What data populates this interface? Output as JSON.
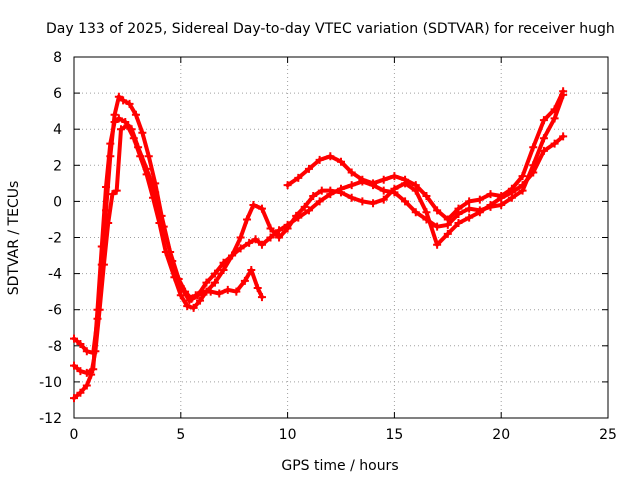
{
  "chart_data": {
    "type": "scatter",
    "title": "Day 133 of 2025, Sidereal Day-to-day VTEC variation (SDTVAR) for receiver hugh",
    "xlabel": "GPS time / hours",
    "ylabel": "SDTVAR / TECUs",
    "xlim": [
      0,
      25
    ],
    "ylim": [
      -12,
      8
    ],
    "x_ticks": [
      0,
      5,
      10,
      15,
      20,
      25
    ],
    "y_ticks": [
      -12,
      -10,
      -8,
      -6,
      -4,
      -2,
      0,
      2,
      4,
      6,
      8
    ],
    "grid": true,
    "marker": "+",
    "color": "#ff0000",
    "series": [
      {
        "name": "trace-1",
        "x": [
          0.0,
          0.3,
          0.6,
          0.9,
          1.1,
          1.3,
          1.5,
          1.7,
          1.9,
          2.1,
          2.3,
          2.6,
          2.9,
          3.2,
          3.5,
          3.8,
          4.1,
          4.5,
          4.9,
          5.2,
          5.5,
          5.7,
          6.0,
          6.4,
          6.8,
          7.2,
          7.6,
          8.0,
          8.3,
          8.6,
          8.8
        ],
        "y": [
          -7.6,
          -7.9,
          -8.3,
          -8.4,
          -6.5,
          -3.5,
          -0.5,
          2.5,
          4.8,
          5.8,
          5.6,
          5.4,
          4.8,
          3.8,
          2.5,
          1.0,
          -0.8,
          -2.8,
          -4.3,
          -5.0,
          -5.4,
          -5.2,
          -5.0,
          -5.0,
          -5.1,
          -4.9,
          -5.0,
          -4.4,
          -3.8,
          -4.8,
          -5.3
        ]
      },
      {
        "name": "trace-2",
        "x": [
          0.0,
          0.3,
          0.6,
          0.9,
          1.1,
          1.3,
          1.5,
          1.7,
          1.9,
          2.1,
          2.4,
          2.7,
          3.0,
          3.4,
          3.8,
          4.2,
          4.6,
          5.0,
          5.4,
          5.8,
          6.2,
          6.6,
          7.0,
          7.4,
          7.8,
          8.2,
          8.5,
          8.8,
          9.2,
          9.6,
          10.0,
          10.5,
          11.0,
          11.5,
          12.0,
          12.5,
          13.0,
          13.5,
          14.0,
          14.5,
          15.0,
          15.5,
          16.0,
          16.5,
          17.0,
          17.5,
          18.0,
          18.5,
          19.0,
          19.5,
          20.0,
          20.5,
          21.0,
          21.5,
          22.0,
          22.5,
          22.9
        ],
        "y": [
          -9.1,
          -9.4,
          -9.5,
          -9.3,
          -6.0,
          -2.5,
          0.8,
          3.2,
          4.4,
          4.6,
          4.4,
          4.0,
          3.0,
          1.8,
          0.5,
          -1.4,
          -3.3,
          -4.7,
          -5.5,
          -5.2,
          -4.5,
          -4.0,
          -3.4,
          -3.0,
          -2.6,
          -2.3,
          -2.1,
          -2.4,
          -2.0,
          -1.6,
          -1.3,
          -0.9,
          -0.5,
          0.0,
          0.4,
          0.7,
          0.9,
          1.1,
          0.9,
          0.6,
          0.5,
          0.0,
          -0.6,
          -1.0,
          -1.4,
          -1.3,
          -0.7,
          -0.4,
          -0.5,
          -0.3,
          -0.2,
          0.2,
          0.6,
          2.0,
          3.5,
          4.6,
          5.9
        ]
      },
      {
        "name": "trace-3",
        "x": [
          0.0,
          0.3,
          0.6,
          0.8,
          1.0,
          1.2,
          1.4,
          1.6,
          1.8,
          2.0,
          2.2,
          2.5,
          2.8,
          3.1,
          3.4,
          3.7,
          4.0,
          4.3,
          4.7,
          5.0,
          5.3,
          5.6,
          5.9,
          6.2,
          6.6,
          7.0,
          7.4,
          7.8,
          8.1,
          8.4,
          8.8,
          9.2,
          9.6,
          10.0,
          10.4,
          10.8,
          11.2,
          11.6,
          12.0,
          12.5,
          13.0,
          13.5,
          14.0,
          14.5,
          15.0,
          15.5,
          16.0,
          16.5,
          17.0,
          17.5,
          18.0,
          18.5,
          19.0,
          19.5,
          20.0,
          20.5,
          21.0,
          21.5,
          22.0,
          22.5,
          22.9
        ],
        "y": [
          -10.9,
          -10.6,
          -10.2,
          -9.6,
          -8.3,
          -6.0,
          -3.5,
          -1.2,
          0.4,
          0.6,
          4.0,
          4.2,
          3.5,
          2.5,
          1.5,
          0.2,
          -1.2,
          -2.8,
          -4.2,
          -5.2,
          -5.8,
          -5.9,
          -5.5,
          -5.0,
          -4.5,
          -3.8,
          -3.0,
          -2.0,
          -1.0,
          -0.2,
          -0.4,
          -1.5,
          -2.0,
          -1.5,
          -0.8,
          -0.3,
          0.3,
          0.6,
          0.6,
          0.5,
          0.2,
          0.0,
          -0.1,
          0.1,
          0.7,
          1.0,
          0.6,
          -0.6,
          -2.4,
          -1.8,
          -1.2,
          -0.9,
          -0.6,
          -0.2,
          0.2,
          0.5,
          0.9,
          1.6,
          2.8,
          3.2,
          3.6
        ]
      },
      {
        "name": "trace-4",
        "x": [
          10.0,
          10.5,
          11.0,
          11.5,
          12.0,
          12.5,
          13.0,
          13.5,
          14.0,
          14.5,
          15.0,
          15.5,
          16.0,
          16.5,
          17.0,
          17.5,
          18.0,
          18.5,
          19.0,
          19.5,
          20.0,
          20.5,
          21.0,
          21.5,
          22.0,
          22.5,
          22.9
        ],
        "y": [
          0.9,
          1.3,
          1.8,
          2.3,
          2.5,
          2.2,
          1.6,
          1.2,
          1.0,
          1.2,
          1.4,
          1.2,
          0.9,
          0.3,
          -0.5,
          -1.0,
          -0.4,
          0.0,
          0.1,
          0.4,
          0.3,
          0.7,
          1.4,
          3.0,
          4.5,
          5.1,
          6.1
        ]
      }
    ]
  }
}
